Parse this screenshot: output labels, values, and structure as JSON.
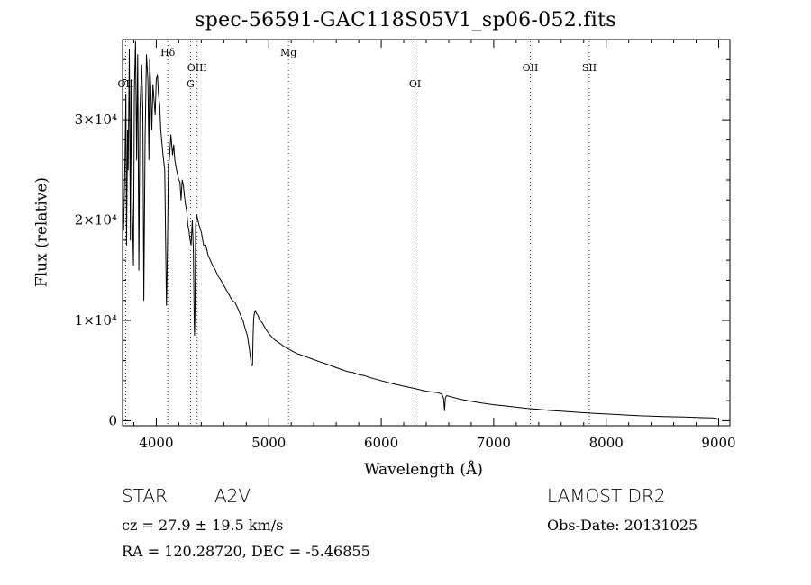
{
  "chart_data": {
    "type": "line",
    "title": "spec-56591-GAC118S05V1_sp06-052.fits",
    "xlabel": "Wavelength (Å)",
    "ylabel": "Flux (relative)",
    "xlim": [
      3700,
      9100
    ],
    "ylim": [
      -500,
      38000
    ],
    "xticks": [
      {
        "value": 4000,
        "label": "4000"
      },
      {
        "value": 5000,
        "label": "5000"
      },
      {
        "value": 6000,
        "label": "6000"
      },
      {
        "value": 7000,
        "label": "7000"
      },
      {
        "value": 8000,
        "label": "8000"
      },
      {
        "value": 9000,
        "label": "9000"
      }
    ],
    "yticks": [
      {
        "value": 0,
        "label": "0"
      },
      {
        "value": 10000,
        "label": "1×10⁴"
      },
      {
        "value": 20000,
        "label": "2×10⁴"
      },
      {
        "value": 30000,
        "label": "3×10⁴"
      }
    ],
    "grid": false,
    "line_markers": [
      {
        "label": "OII",
        "wavelength": 3727,
        "row": "low"
      },
      {
        "label": "Hδ",
        "wavelength": 4102,
        "row": "top"
      },
      {
        "label": "G",
        "wavelength": 4304,
        "row": "low"
      },
      {
        "label": "OIII",
        "wavelength": 4363,
        "row": "mid"
      },
      {
        "label": "Mg",
        "wavelength": 5175,
        "row": "top"
      },
      {
        "label": "OI",
        "wavelength": 6300,
        "row": "low"
      },
      {
        "label": "OII",
        "wavelength": 7325,
        "row": "mid"
      },
      {
        "label": "SII",
        "wavelength": 7850,
        "row": "mid"
      }
    ],
    "series": [
      {
        "color": "#000000",
        "x": [
          3700,
          3710,
          3722,
          3730,
          3735,
          3745,
          3750,
          3760,
          3770,
          3775,
          3785,
          3797,
          3805,
          3815,
          3825,
          3835,
          3845,
          3855,
          3870,
          3880,
          3889,
          3900,
          3912,
          3925,
          3935,
          3940,
          3950,
          3960,
          3970,
          3980,
          3990,
          4000,
          4010,
          4020,
          4030,
          4040,
          4060,
          4075,
          4090,
          4095,
          4102,
          4108,
          4115,
          4125,
          4130,
          4145,
          4155,
          4165,
          4180,
          4190,
          4200,
          4210,
          4220,
          4230,
          4240,
          4250,
          4260,
          4270,
          4280,
          4290,
          4300,
          4310,
          4320,
          4330,
          4337,
          4340,
          4344,
          4350,
          4360,
          4370,
          4380,
          4400,
          4420,
          4440,
          4460,
          4480,
          4500,
          4525,
          4550,
          4575,
          4600,
          4625,
          4650,
          4675,
          4700,
          4725,
          4750,
          4770,
          4790,
          4810,
          4830,
          4845,
          4855,
          4861,
          4866,
          4872,
          4880,
          4890,
          4905,
          4920,
          4940,
          4960,
          4980,
          5000,
          5030,
          5060,
          5100,
          5150,
          5200,
          5250,
          5300,
          5350,
          5400,
          5450,
          5500,
          5550,
          5600,
          5650,
          5700,
          5750,
          5800,
          5850,
          5900,
          5950,
          6000,
          6100,
          6200,
          6300,
          6400,
          6500,
          6540,
          6555,
          6563,
          6570,
          6580,
          6600,
          6650,
          6700,
          6800,
          6900,
          7000,
          7100,
          7200,
          7300,
          7400,
          7500,
          7600,
          7700,
          7800,
          7900,
          8000,
          8100,
          8200,
          8300,
          8400,
          8500,
          8600,
          8700,
          8800,
          8900,
          8950,
          8970,
          8980,
          9000
        ],
        "y": [
          23000,
          19000,
          26000,
          32500,
          17500,
          29000,
          25000,
          37000,
          18000,
          34000,
          22000,
          15500,
          33000,
          37800,
          26000,
          36500,
          15000,
          31000,
          35500,
          31000,
          12000,
          28000,
          36500,
          34000,
          26000,
          36000,
          33500,
          29000,
          33500,
          32000,
          30500,
          34000,
          34500,
          32500,
          31500,
          29000,
          26500,
          25000,
          11500,
          14000,
          20000,
          25500,
          26000,
          27500,
          28500,
          26500,
          27500,
          26000,
          25000,
          24500,
          24000,
          23800,
          22000,
          24000,
          23500,
          22500,
          21500,
          21000,
          19500,
          19000,
          18000,
          17500,
          20000,
          17000,
          10000,
          8500,
          11000,
          19500,
          20500,
          20000,
          19500,
          18800,
          17500,
          17500,
          16500,
          16000,
          15500,
          15000,
          14400,
          14000,
          13500,
          13000,
          12500,
          12000,
          11800,
          11200,
          10500,
          10000,
          9200,
          8500,
          7000,
          5500,
          5500,
          8500,
          10200,
          10700,
          11000,
          10700,
          10500,
          10000,
          9800,
          9400,
          9000,
          8700,
          8300,
          8000,
          7700,
          7300,
          7000,
          6700,
          6500,
          6300,
          6100,
          5900,
          5700,
          5500,
          5300,
          5100,
          4900,
          4800,
          4600,
          4500,
          4300,
          4150,
          4000,
          3700,
          3450,
          3200,
          2950,
          2800,
          2650,
          2200,
          1000,
          2250,
          2500,
          2450,
          2300,
          2150,
          1950,
          1750,
          1600,
          1480,
          1350,
          1230,
          1130,
          1030,
          960,
          880,
          800,
          740,
          680,
          620,
          560,
          500,
          460,
          420,
          400,
          370,
          330,
          300,
          280,
          250,
          230,
          100
        ]
      }
    ]
  },
  "info": {
    "object_type": "STAR",
    "object_class": "A2V",
    "survey": "LAMOST DR2",
    "cz": "cz = 27.9 ± 19.5 km/s",
    "obs_date": "Obs-Date: 20131025",
    "radec": "RA = 120.28720, DEC =  -5.46855"
  }
}
